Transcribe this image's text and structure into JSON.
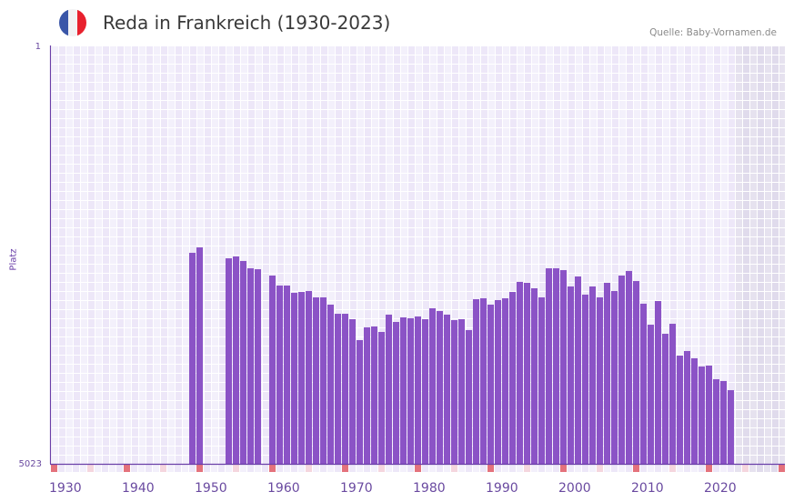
{
  "header": {
    "title": "Reda in Frankreich (1930-2023)",
    "source": "Quelle: Baby-Vornamen.de",
    "flag_icon": "france-flag",
    "flag_colors": [
      "#3a56a8",
      "#f2f2f4",
      "#e8212e"
    ]
  },
  "colors": {
    "bar": "#8b53c6",
    "axis": "#6a3fa8",
    "marker_decade": "#e4727c",
    "marker_half": "#f5d6de",
    "grid_a": "#f3f0fb",
    "grid_b": "#ede7f8",
    "future_a": "#e6e2ef",
    "future_b": "#e0dbec"
  },
  "chart_data": {
    "type": "bar",
    "title": "Reda in Frankreich (1930-2023)",
    "xlabel": "",
    "ylabel": "Platz",
    "y_inverted": true,
    "ylim": [
      1,
      5023
    ],
    "xlim": [
      1930,
      2030
    ],
    "y_ticks": [
      "1",
      "5023"
    ],
    "x_ticks": [
      "1930",
      "1940",
      "1950",
      "1960",
      "1970",
      "1980",
      "1990",
      "2000",
      "2010",
      "2020"
    ],
    "grid": true,
    "future_shaded_from": 2024,
    "years_start": 1930,
    "values": [
      null,
      null,
      null,
      null,
      null,
      null,
      null,
      null,
      null,
      null,
      null,
      null,
      null,
      null,
      null,
      null,
      null,
      null,
      null,
      2490,
      2425,
      null,
      null,
      null,
      2556,
      2534,
      2588,
      2676,
      2687,
      null,
      2763,
      2883,
      2883,
      2970,
      2960,
      2949,
      3025,
      3025,
      3112,
      3222,
      3222,
      3287,
      3538,
      3385,
      3374,
      3440,
      3232,
      3320,
      3265,
      3276,
      3254,
      3287,
      3156,
      3189,
      3232,
      3298,
      3287,
      3418,
      3047,
      3036,
      3112,
      3058,
      3036,
      2960,
      2839,
      2850,
      2916,
      3025,
      2676,
      2676,
      2698,
      2894,
      2774,
      2992,
      2894,
      3025,
      2850,
      2949,
      2763,
      2708,
      2829,
      3101,
      3353,
      3069,
      3462,
      3342,
      3724,
      3669,
      3756,
      3855,
      3844,
      4008,
      4029,
      4139
    ]
  }
}
